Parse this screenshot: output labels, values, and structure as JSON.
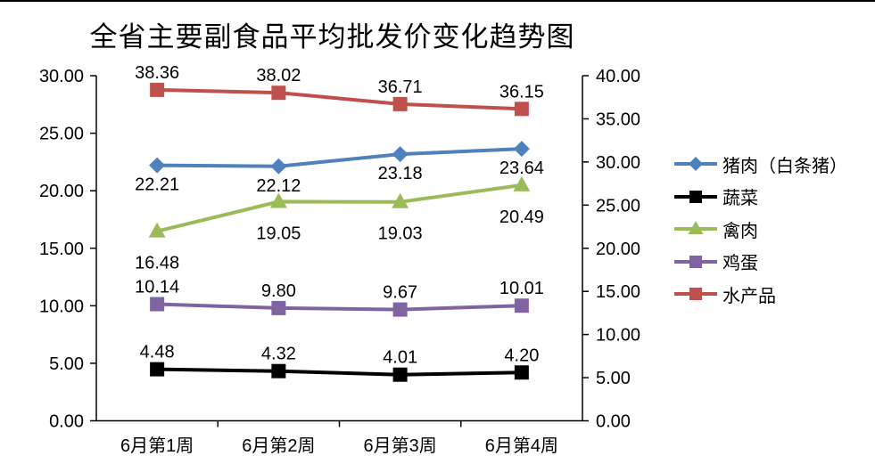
{
  "chart_data": {
    "type": "line",
    "title": "全省主要副食品平均批发价变化趋势图",
    "categories": [
      "6月第1周",
      "6月第2周",
      "6月第3周",
      "6月第4周"
    ],
    "series": [
      {
        "name": "猪肉（白条猪）",
        "values": [
          22.21,
          22.12,
          23.18,
          23.64
        ],
        "color": "#4F81BD",
        "marker": "diamond",
        "axis": "left",
        "label_position": "below"
      },
      {
        "name": "蔬菜",
        "values": [
          4.48,
          4.32,
          4.01,
          4.2
        ],
        "color": "#000000",
        "marker": "square",
        "axis": "left",
        "label_position": "above"
      },
      {
        "name": "禽肉",
        "values": [
          16.48,
          19.05,
          19.03,
          20.49
        ],
        "color": "#9BBB59",
        "marker": "triangle",
        "axis": "left",
        "label_position": "below-far"
      },
      {
        "name": "鸡蛋",
        "values": [
          10.14,
          9.8,
          9.67,
          10.01
        ],
        "color": "#8064A2",
        "marker": "square",
        "axis": "left",
        "label_position": "above"
      },
      {
        "name": "水产品",
        "values": [
          38.36,
          38.02,
          36.71,
          36.15
        ],
        "color": "#C0504D",
        "marker": "square",
        "axis": "right",
        "label_position": "above"
      }
    ],
    "left_axis": {
      "min": 0,
      "max": 30,
      "step": 5,
      "tick_labels": [
        "0.00",
        "5.00",
        "10.00",
        "15.00",
        "20.00",
        "25.00",
        "30.00"
      ]
    },
    "right_axis": {
      "min": 0,
      "max": 40,
      "step": 5,
      "tick_labels": [
        "0.00",
        "5.00",
        "10.00",
        "15.00",
        "20.00",
        "25.00",
        "30.00",
        "35.00",
        "40.00"
      ]
    },
    "value_label_decimals": 2,
    "grid": false,
    "legend_position": "right",
    "axis_color": "#000000",
    "background": "#FFFFFF"
  }
}
